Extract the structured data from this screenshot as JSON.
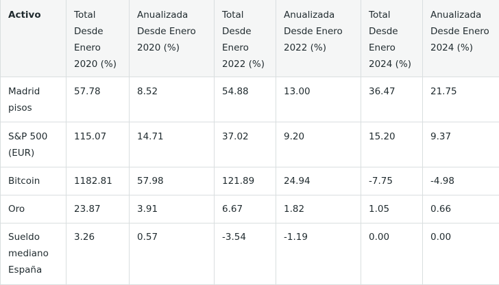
{
  "table": {
    "headers": [
      "Activo",
      "Total Desde Enero 2020 (%)",
      "Anualizada Desde Enero 2020 (%)",
      "Total Desde Enero 2022 (%)",
      "Anualizada Desde Enero 2022 (%)",
      "Total Desde Enero 2024 (%)",
      "Anualizada Desde Enero 2024 (%)"
    ],
    "rows": [
      [
        "Madrid pisos",
        "57.78",
        "8.52",
        "54.88",
        "13.00",
        "36.47",
        "21.75"
      ],
      [
        "S&P 500 (EUR)",
        "115.07",
        "14.71",
        "37.02",
        "9.20",
        "15.20",
        "9.37"
      ],
      [
        "Bitcoin",
        "1182.81",
        "57.98",
        "121.89",
        "24.94",
        "-7.75",
        "-4.98"
      ],
      [
        "Oro",
        "23.87",
        "3.91",
        "6.67",
        "1.82",
        "1.05",
        "0.66"
      ],
      [
        "Sueldo mediano España",
        "3.26",
        "0.57",
        "-3.54",
        "-1.19",
        "0.00",
        "0.00"
      ]
    ]
  }
}
